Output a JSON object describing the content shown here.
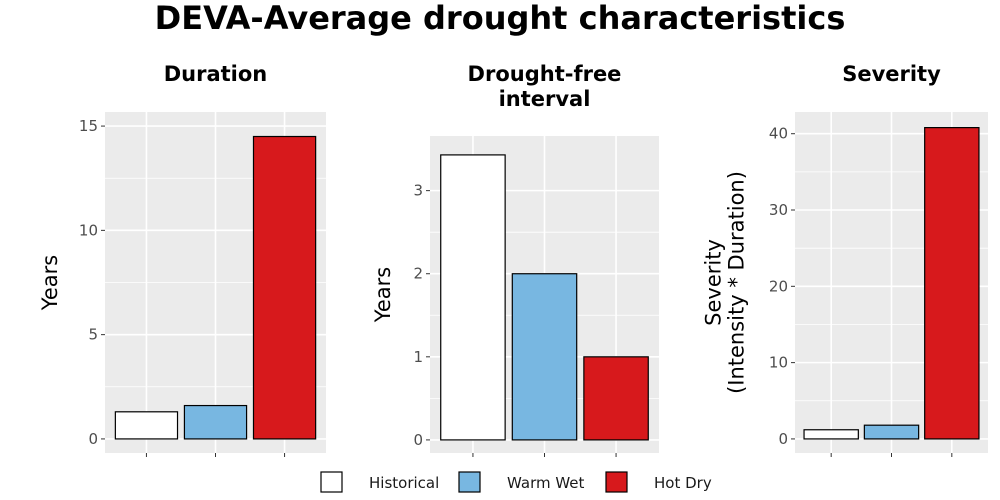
{
  "title": "DEVA-Average drought characteristics",
  "legend": {
    "position": "bottom",
    "items": [
      {
        "name": "Historical",
        "color": "#ffffff"
      },
      {
        "name": "Warm Wet",
        "color": "#78b7e1"
      },
      {
        "name": "Hot Dry",
        "color": "#d7191c"
      }
    ]
  },
  "chart_data": [
    {
      "type": "bar",
      "title": [
        "Duration"
      ],
      "ylabel": [
        "Years"
      ],
      "categories": [
        "Historical",
        "Warm Wet",
        "Hot Dry"
      ],
      "values": [
        1.3,
        1.6,
        14.5
      ],
      "ylim": [
        0,
        15
      ],
      "yticks": [
        0,
        5,
        10,
        15
      ],
      "grid": true
    },
    {
      "type": "bar",
      "title": [
        "Drought-free",
        "interval"
      ],
      "ylabel": [
        "Years"
      ],
      "categories": [
        "Historical",
        "Warm Wet",
        "Hot Dry"
      ],
      "values": [
        3.43,
        2.0,
        1.0
      ],
      "ylim": [
        0,
        3.5
      ],
      "yticks": [
        0,
        1,
        2,
        3
      ],
      "grid": true
    },
    {
      "type": "bar",
      "title": [
        "Severity"
      ],
      "ylabel": [
        "Severity",
        "(Intensity * Duration)"
      ],
      "categories": [
        "Historical",
        "Warm Wet",
        "Hot Dry"
      ],
      "values": [
        1.2,
        1.8,
        40.8
      ],
      "ylim": [
        0,
        41
      ],
      "yticks": [
        0,
        10,
        20,
        30,
        40
      ],
      "grid": true
    }
  ]
}
